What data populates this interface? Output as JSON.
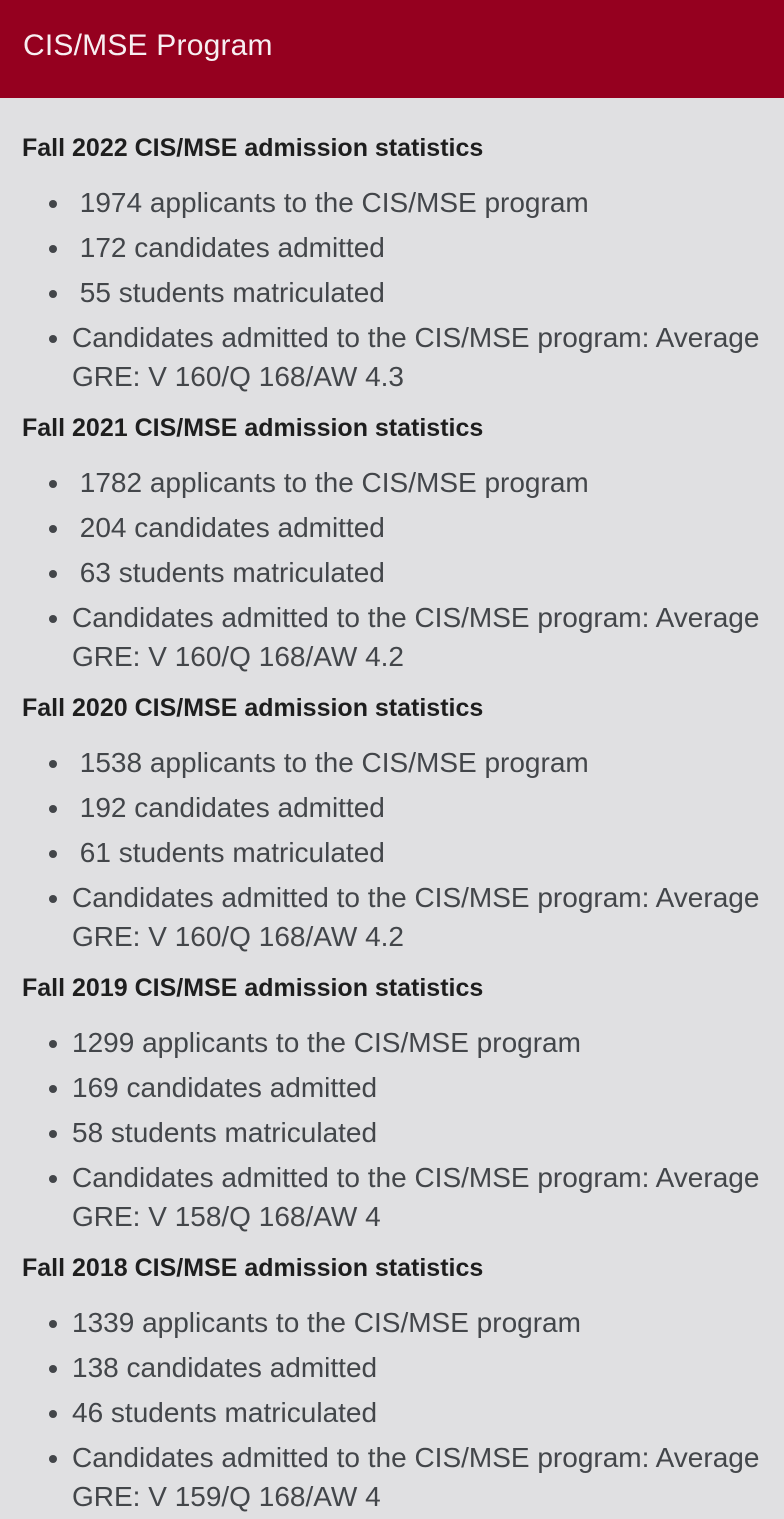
{
  "theme": {
    "header_bg": "#95001f",
    "header_text": "#f7eef1",
    "page_bg": "#e0e0e2",
    "heading_color": "#1e1e1e",
    "body_color": "#43464a"
  },
  "header": {
    "title": "CIS/MSE Program"
  },
  "sections": [
    {
      "heading": "Fall 2022 CIS/MSE admission statistics",
      "items": [
        " 1974 applicants to the CIS/MSE program",
        " 172 candidates admitted",
        " 55 students matriculated",
        "Candidates admitted to the CIS/MSE program: Average GRE: V 160/Q 168/AW 4.3"
      ]
    },
    {
      "heading": "Fall 2021 CIS/MSE admission statistics",
      "items": [
        " 1782 applicants to the CIS/MSE program",
        " 204 candidates admitted",
        " 63 students matriculated",
        "Candidates admitted to the CIS/MSE program: Average GRE: V 160/Q 168/AW 4.2"
      ]
    },
    {
      "heading": "Fall 2020 CIS/MSE admission statistics",
      "items": [
        " 1538 applicants to the CIS/MSE program",
        " 192 candidates admitted",
        " 61 students matriculated",
        "Candidates admitted to the CIS/MSE program: Average GRE: V 160/Q 168/AW 4.2"
      ]
    },
    {
      "heading": "Fall 2019 CIS/MSE admission statistics",
      "items": [
        "1299 applicants to the CIS/MSE program",
        "169 candidates admitted",
        "58 students matriculated",
        "Candidates admitted to the CIS/MSE program: Average GRE: V 158/Q 168/AW 4"
      ]
    },
    {
      "heading": "Fall 2018 CIS/MSE admission statistics",
      "items": [
        "1339 applicants to the CIS/MSE program",
        "138 candidates admitted",
        "46 students matriculated",
        "Candidates admitted to the CIS/MSE program: Average GRE: V 159/Q 168/AW 4"
      ]
    }
  ]
}
